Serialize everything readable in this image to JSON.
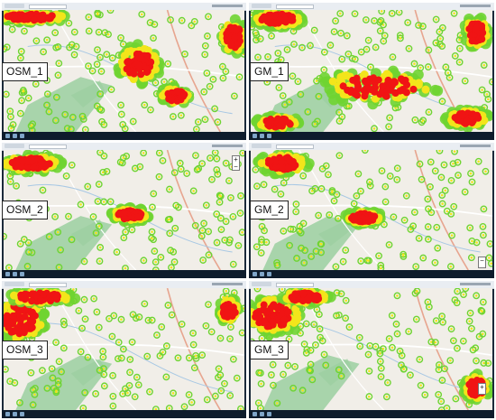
{
  "panels": [
    {
      "id": "osm1",
      "label": "OSM_1",
      "basemap": "osm"
    },
    {
      "id": "gm1",
      "label": "GM_1",
      "basemap": "gm"
    },
    {
      "id": "osm2",
      "label": "OSM_2",
      "basemap": "osm"
    },
    {
      "id": "gm2",
      "label": "GM_2",
      "basemap": "gm"
    },
    {
      "id": "osm3",
      "label": "OSM_3",
      "basemap": "osm"
    },
    {
      "id": "gm3",
      "label": "GM_3",
      "basemap": "gm"
    }
  ],
  "colors": {
    "map_bg": "#f1eee8",
    "forest": "#9bcfa0",
    "water": "#a8c8e4",
    "heat_low": "#6fd431",
    "heat_mid": "#f3e51b",
    "heat_high": "#f01414"
  },
  "zoom_control": {
    "zoom_in_icon": "plus-icon",
    "zoom_out_icon": "minus-icon"
  }
}
